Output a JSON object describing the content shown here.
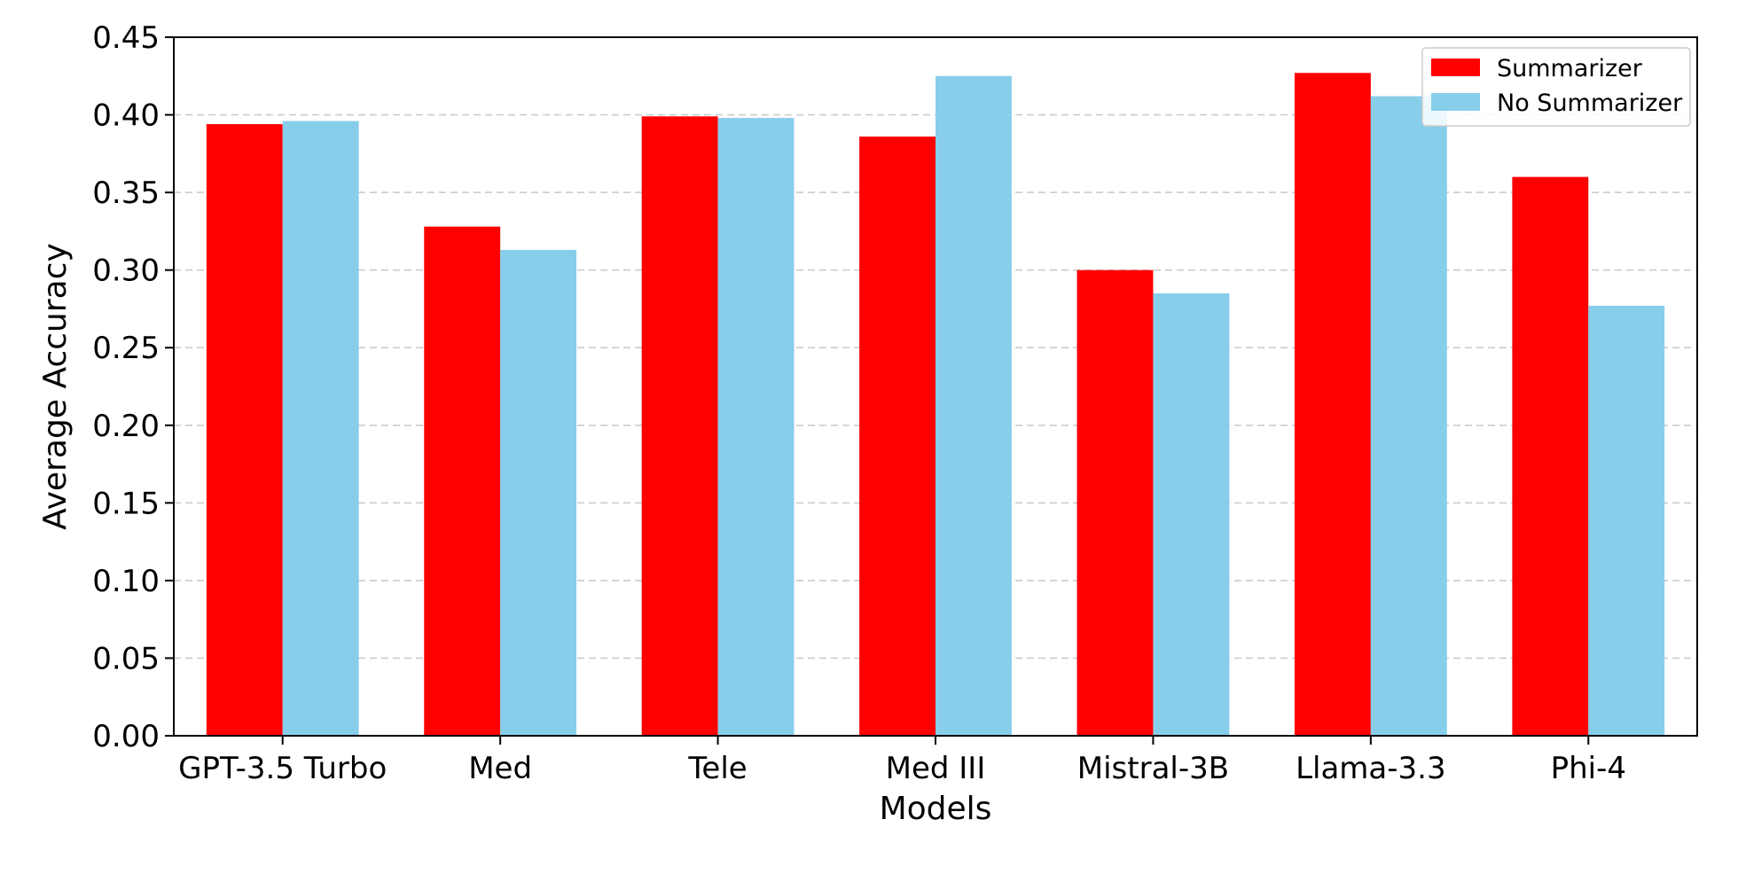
{
  "chart_data": {
    "type": "bar",
    "title": "",
    "xlabel": "Models",
    "ylabel": "Average Accuracy",
    "categories": [
      "GPT-3.5 Turbo",
      "Med",
      "Tele",
      "Med III",
      "Mistral-3B",
      "Llama-3.3",
      "Phi-4"
    ],
    "series": [
      {
        "name": "Summarizer",
        "color": "#ff0000",
        "values": [
          0.394,
          0.328,
          0.399,
          0.386,
          0.3,
          0.427,
          0.36
        ]
      },
      {
        "name": "No Summarizer",
        "color": "#87ceeb",
        "values": [
          0.396,
          0.313,
          0.398,
          0.425,
          0.285,
          0.412,
          0.277
        ]
      }
    ],
    "ylim": [
      0,
      0.45
    ],
    "yticks": [
      "0.00",
      "0.05",
      "0.10",
      "0.15",
      "0.20",
      "0.25",
      "0.30",
      "0.35",
      "0.40",
      "0.45"
    ],
    "grid": "horizontal dashed",
    "legend_position": "top-right"
  }
}
